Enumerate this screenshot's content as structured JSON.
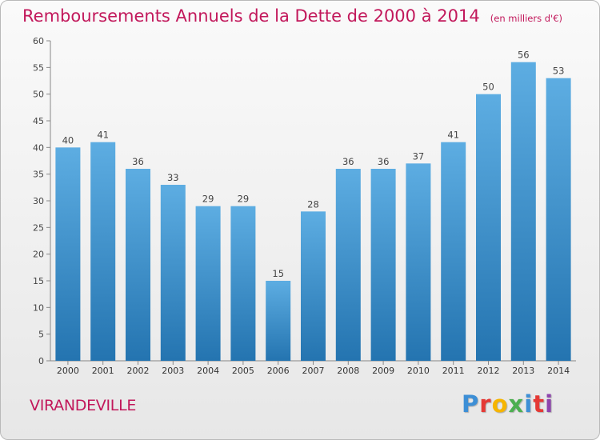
{
  "title": "Remboursements Annuels de la Dette de 2000 à 2014",
  "unit": "(en milliers d'€)",
  "commune": "VIRANDEVILLE",
  "logo": {
    "text": "Proxiti",
    "colors": [
      "#3d8fd6",
      "#e53935",
      "#f6b500",
      "#4caf50",
      "#3d8fd6",
      "#e53935",
      "#8e44ad"
    ]
  },
  "colors": {
    "title": "#c2185b",
    "bar_top": "#5dade2",
    "bar_bottom": "#2474b0"
  },
  "chart_data": {
    "type": "bar",
    "categories": [
      "2000",
      "2001",
      "2002",
      "2003",
      "2004",
      "2005",
      "2006",
      "2007",
      "2008",
      "2009",
      "2010",
      "2011",
      "2012",
      "2013",
      "2014"
    ],
    "values": [
      40,
      41,
      36,
      33,
      29,
      29,
      15,
      28,
      36,
      36,
      37,
      41,
      50,
      56,
      53
    ],
    "ylim": [
      0,
      60
    ],
    "yticks": [
      0,
      5,
      10,
      15,
      20,
      25,
      30,
      35,
      40,
      45,
      50,
      55,
      60
    ],
    "grid": false,
    "data_labels": true
  }
}
